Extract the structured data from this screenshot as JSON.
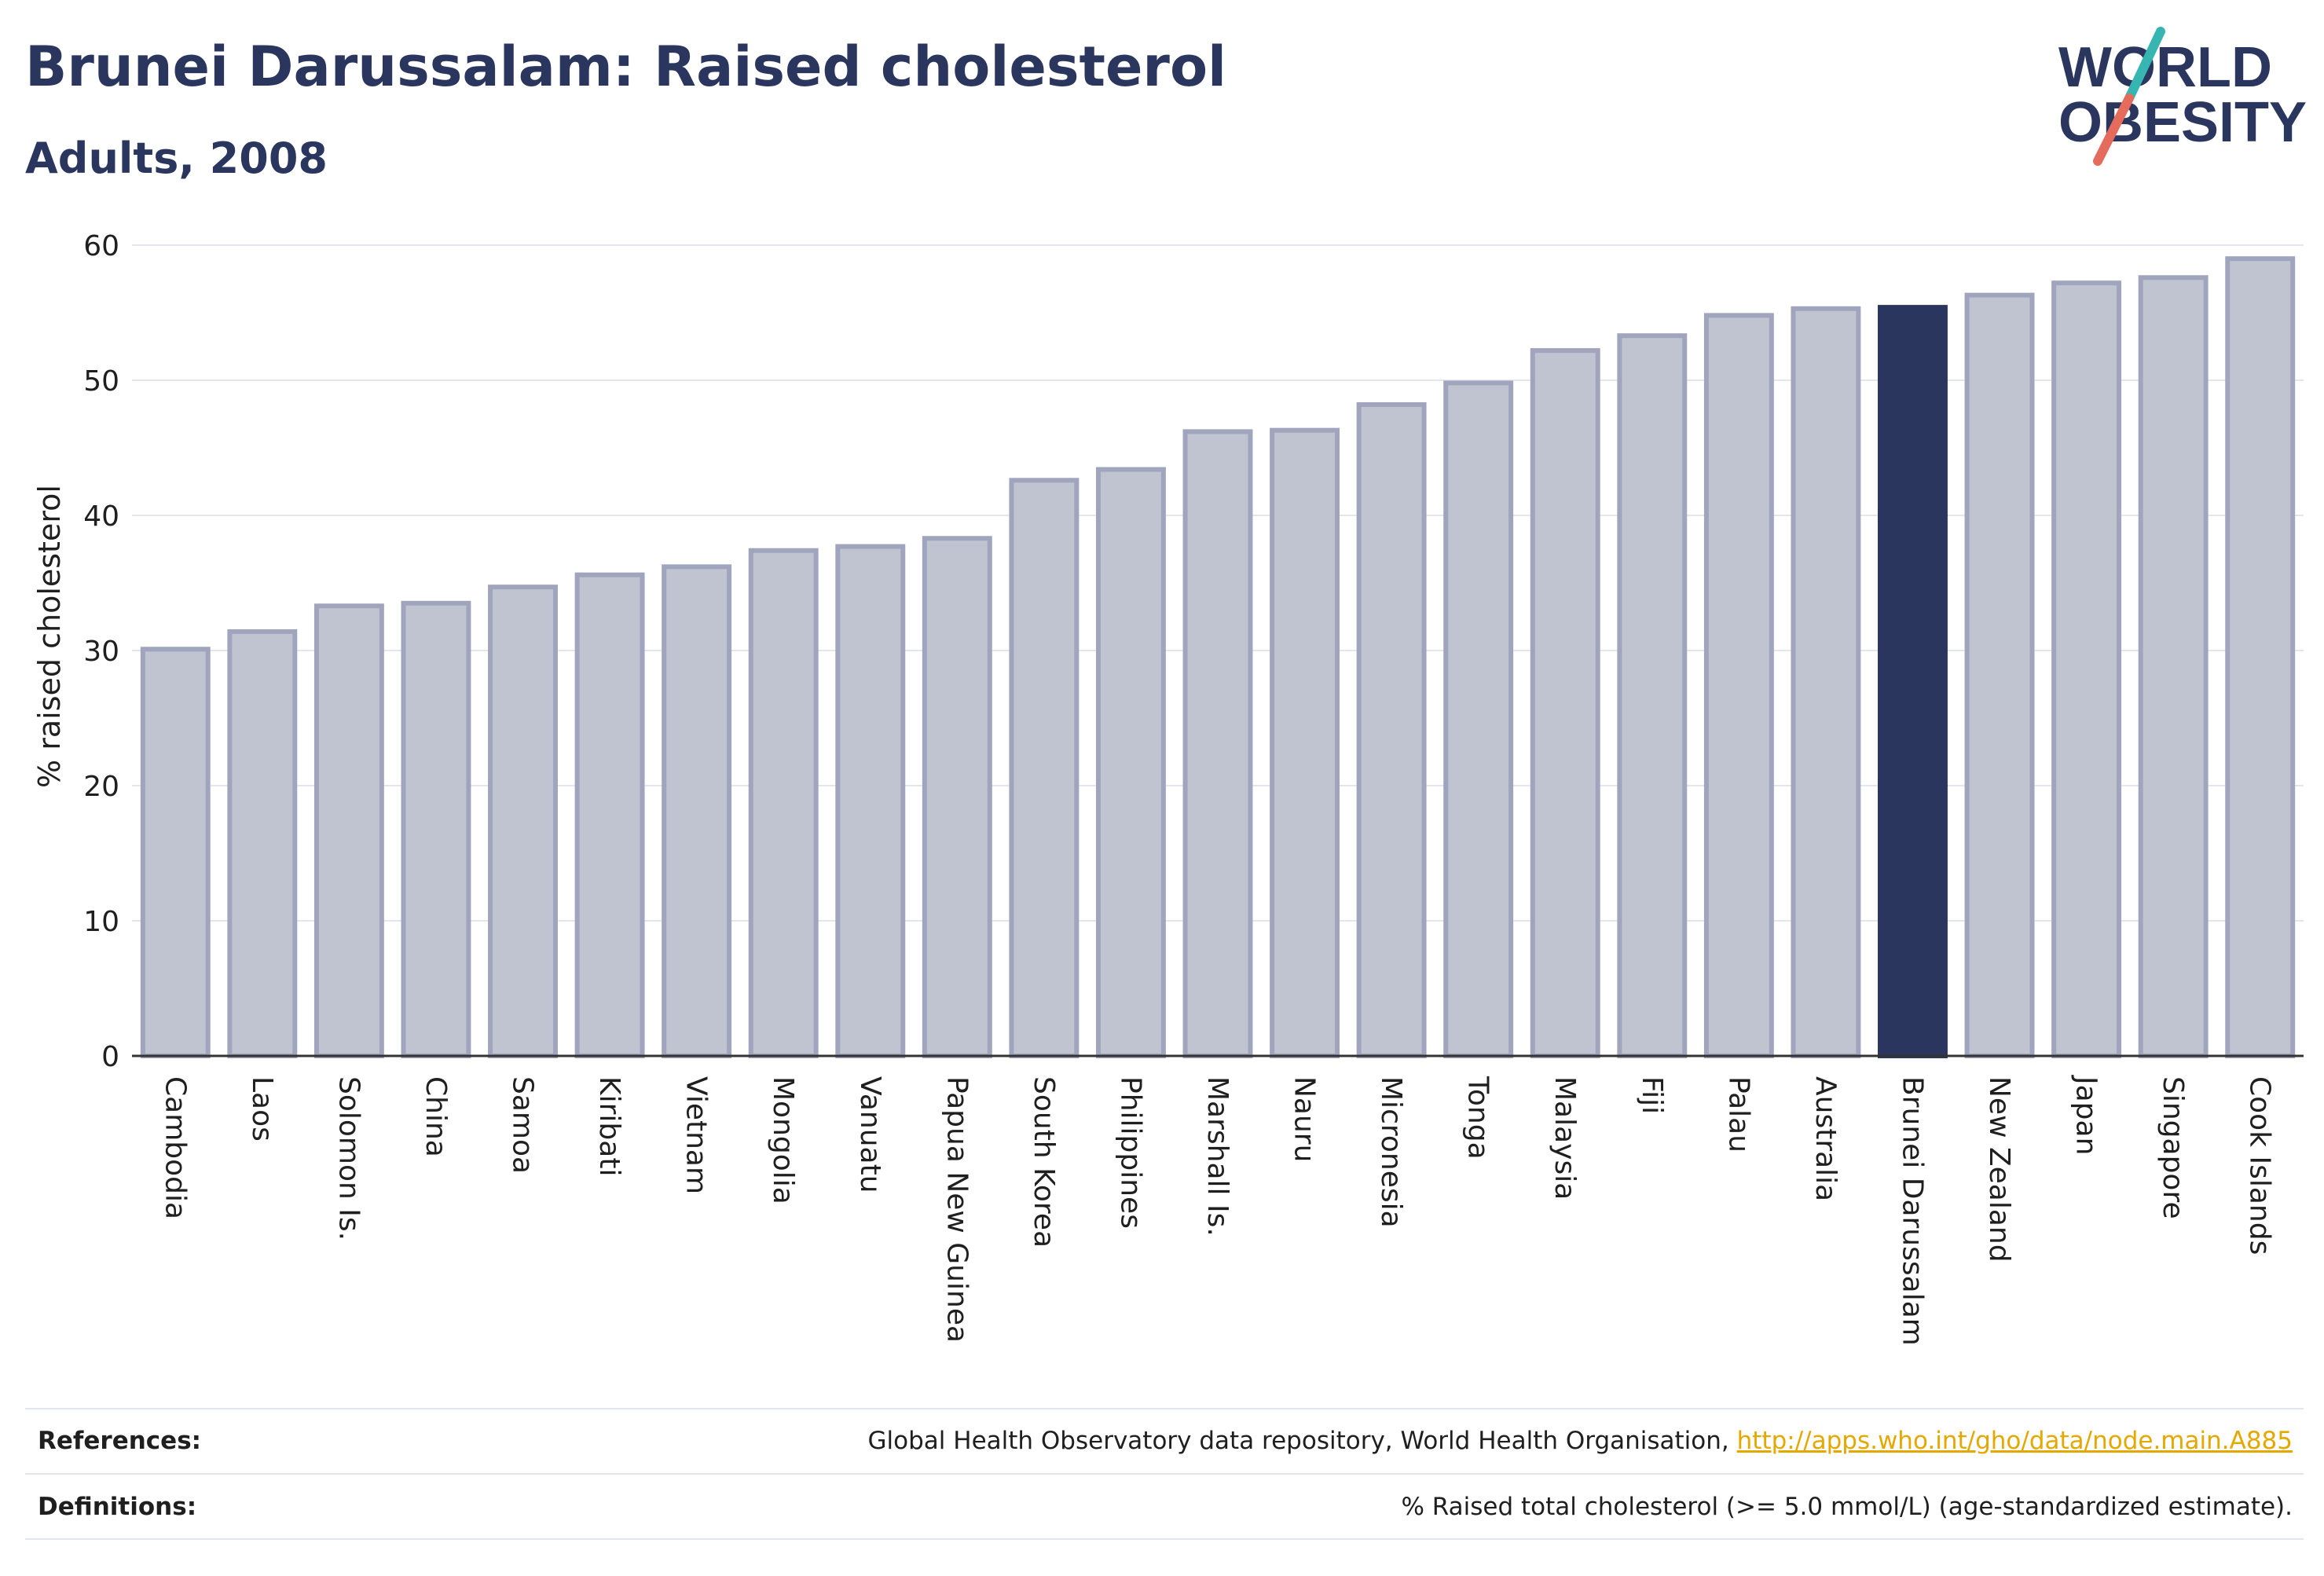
{
  "header": {
    "title": "Brunei Darussalam: Raised cholesterol",
    "subtitle": "Adults, 2008"
  },
  "logo": {
    "line1": "WORLD",
    "line2": "OBESITY",
    "colors": {
      "text": "#2b365f",
      "slash_top": "#37b5b3",
      "slash_bottom": "#e56b5d"
    }
  },
  "colors": {
    "bar_fill": "#c0c3d0",
    "bar_stroke": "#a0a5bd",
    "highlight": "#2b365f",
    "grid": "#e3e6ee",
    "axis": "#333333"
  },
  "chart_data": {
    "type": "bar",
    "title": "Brunei Darussalam: Raised cholesterol",
    "subtitle": "Adults, 2008",
    "xlabel": "",
    "ylabel": "% raised cholesterol",
    "ylim": [
      0,
      60
    ],
    "yticks": [
      0,
      10,
      20,
      30,
      40,
      50,
      60
    ],
    "grid": true,
    "highlight": "Brunei Darussalam",
    "categories": [
      "Cambodia",
      "Laos",
      "Solomon Is.",
      "China",
      "Samoa",
      "Kiribati",
      "Vietnam",
      "Mongolia",
      "Vanuatu",
      "Papua New Guinea",
      "South Korea",
      "Philippines",
      "Marshall Is.",
      "Nauru",
      "Micronesia",
      "Tonga",
      "Malaysia",
      "Fiji",
      "Palau",
      "Australia",
      "Brunei Darussalam",
      "New Zealand",
      "Japan",
      "Singapore",
      "Cook Islands"
    ],
    "values": [
      30.1,
      31.4,
      33.3,
      33.5,
      34.7,
      35.6,
      36.2,
      37.4,
      37.7,
      38.3,
      42.6,
      43.4,
      46.2,
      46.3,
      48.2,
      49.8,
      52.2,
      53.3,
      54.8,
      55.3,
      55.4,
      56.3,
      57.2,
      57.6,
      59.0
    ]
  },
  "footer": {
    "references_label": "References:",
    "references_text": "Global Health Observatory data repository, World Health Organisation, ",
    "references_link": "http://apps.who.int/gho/data/node.main.A885",
    "definitions_label": "Definitions:",
    "definitions_text": "% Raised total cholesterol (>= 5.0 mmol/L) (age-standardized estimate)."
  }
}
